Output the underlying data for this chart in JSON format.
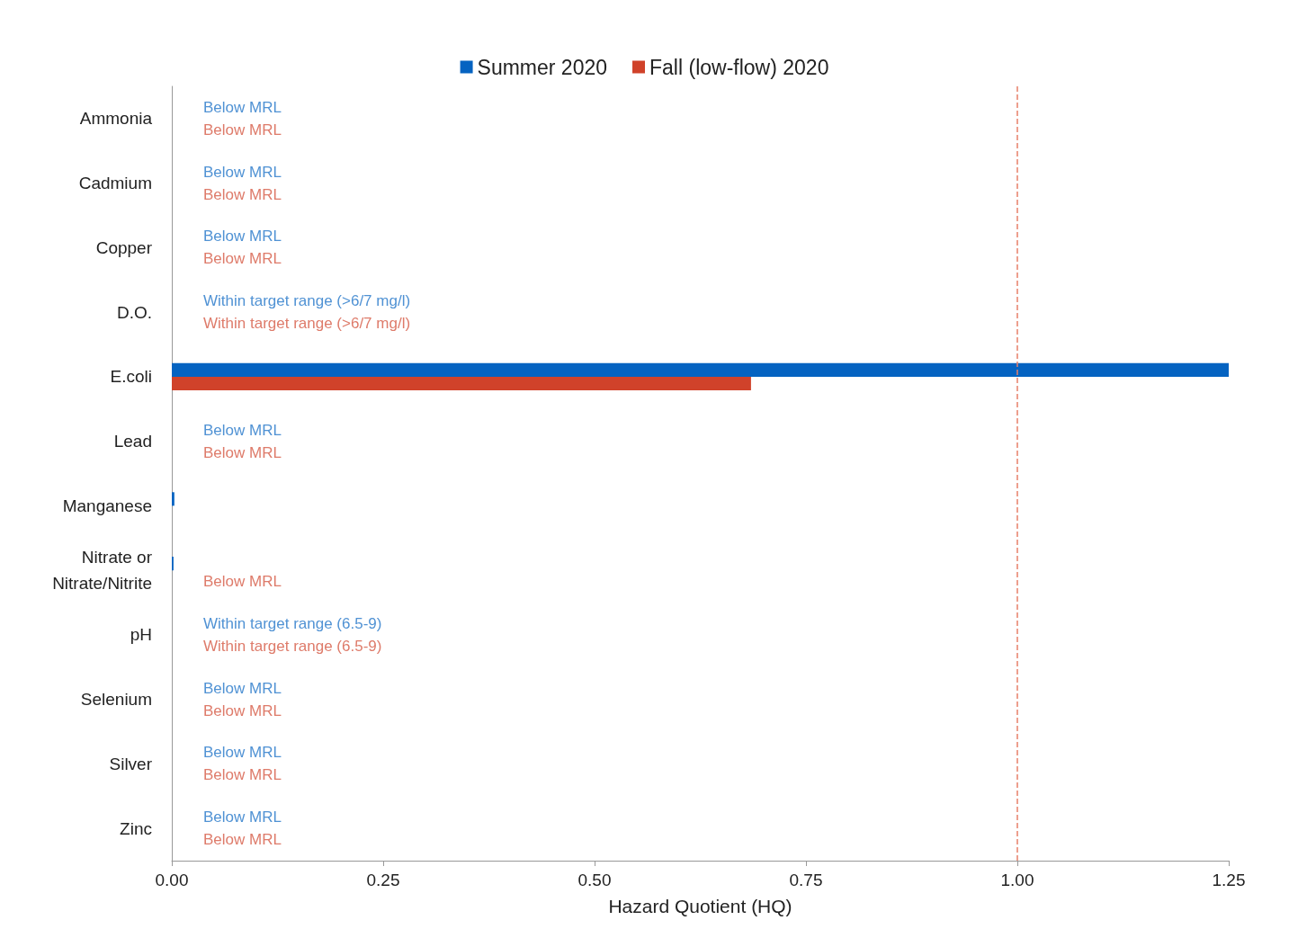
{
  "chart_data": {
    "type": "bar",
    "orientation": "horizontal",
    "xlabel": "Hazard Quotient (HQ)",
    "categories": [
      "Ammonia",
      "Cadmium",
      "Copper",
      "D.O.",
      "E.coli",
      "Lead",
      "Manganese",
      "Nitrate or\nNitrate/Nitrite",
      "pH",
      "Selenium",
      "Silver",
      "Zinc"
    ],
    "series": [
      {
        "name": "Summer 2020",
        "color": "#0563c1",
        "values": [
          0,
          0,
          0,
          0,
          1.25,
          0,
          0.003,
          0.002,
          0,
          0,
          0,
          0
        ],
        "value_labels": [
          "Below MRL",
          "Below MRL",
          "Below MRL",
          "Within target range (>6/7 mg/l)",
          null,
          "Below MRL",
          null,
          null,
          "Within target range (6.5-9)",
          "Below MRL",
          "Below MRL",
          "Below MRL"
        ]
      },
      {
        "name": "Fall (low-flow) 2020",
        "color": "#d0422a",
        "values": [
          0,
          0,
          0,
          0,
          0.685,
          0,
          null,
          0,
          0,
          0,
          0,
          0
        ],
        "value_labels": [
          "Below MRL",
          "Below MRL",
          "Below MRL",
          "Within target range (>6/7 mg/l)",
          null,
          "Below MRL",
          null,
          "Below MRL",
          "Within target range (6.5-9)",
          "Below MRL",
          "Below MRL",
          "Below MRL"
        ]
      }
    ],
    "xlim": [
      0,
      1.25
    ],
    "xticks": [
      {
        "value": 0,
        "label": "0.00"
      },
      {
        "value": 0.25,
        "label": "0.25"
      },
      {
        "value": 0.5,
        "label": "0.50"
      },
      {
        "value": 0.75,
        "label": "0.75"
      },
      {
        "value": 1,
        "label": "1.00"
      },
      {
        "value": 1.25,
        "label": "1.25"
      }
    ],
    "ref_lines": [
      {
        "axis": "x",
        "value": 1,
        "color": "#e8806a",
        "line_style": "dashed"
      }
    ],
    "grid": false,
    "legend": "top"
  }
}
